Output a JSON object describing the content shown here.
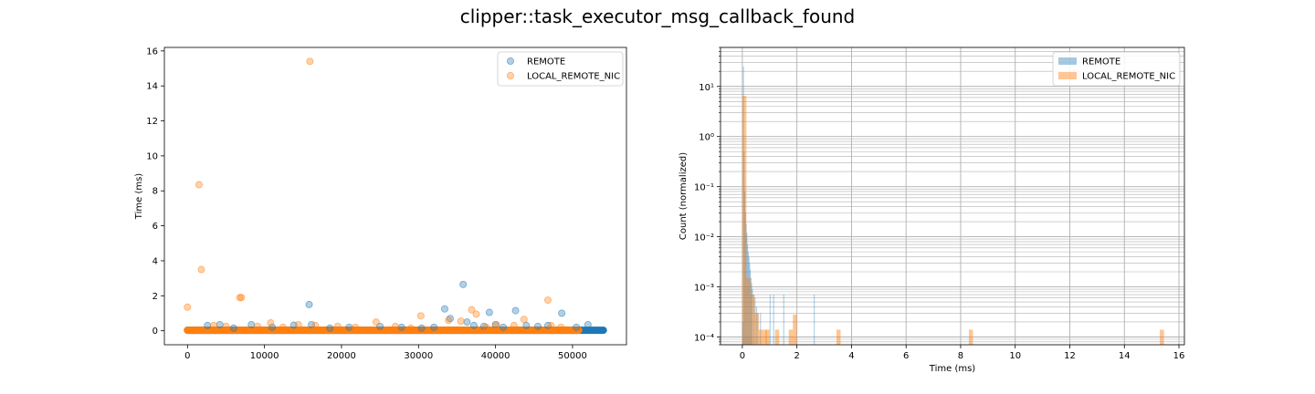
{
  "figure": {
    "title": "clipper::task_executor_msg_callback_found"
  },
  "colors": {
    "remote": "#1f77b4",
    "local_remote_nic": "#ff7f0e",
    "grid": "#b0b0b0",
    "axes": "#000000"
  },
  "chart_data": [
    {
      "type": "scatter",
      "title": "",
      "xlabel": "",
      "ylabel": "Time (ms)",
      "xlim": [
        -3000,
        57000
      ],
      "ylim": [
        -0.8,
        16.2
      ],
      "xticks": [
        0,
        10000,
        20000,
        30000,
        40000,
        50000
      ],
      "yticks": [
        0,
        2,
        4,
        6,
        8,
        10,
        12,
        14,
        16
      ],
      "legend": "top-right",
      "baseline": [
        {
          "name": "REMOTE",
          "x_range": [
            0,
            54000
          ],
          "y": 0.03
        },
        {
          "name": "LOCAL_REMOTE_NIC",
          "x_range": [
            0,
            50800
          ],
          "y": 0.03
        }
      ],
      "series": [
        {
          "name": "REMOTE",
          "color": "#1f77b4",
          "points": [
            [
              35800,
              2.65
            ],
            [
              15800,
              1.5
            ],
            [
              33400,
              1.25
            ],
            [
              39200,
              1.05
            ],
            [
              42600,
              1.15
            ],
            [
              48600,
              1.0
            ],
            [
              34100,
              0.7
            ],
            [
              36300,
              0.5
            ],
            [
              30400,
              0.15
            ],
            [
              13800,
              0.32
            ],
            [
              16100,
              0.35
            ],
            [
              8300,
              0.35
            ],
            [
              2600,
              0.3
            ],
            [
              4200,
              0.35
            ],
            [
              25000,
              0.25
            ],
            [
              27800,
              0.2
            ],
            [
              21000,
              0.2
            ],
            [
              44000,
              0.3
            ],
            [
              45500,
              0.25
            ],
            [
              52000,
              0.35
            ],
            [
              50500,
              0.2
            ],
            [
              38500,
              0.25
            ],
            [
              40000,
              0.35
            ],
            [
              32000,
              0.2
            ],
            [
              18500,
              0.15
            ],
            [
              11000,
              0.2
            ],
            [
              6000,
              0.15
            ],
            [
              46800,
              0.3
            ],
            [
              41000,
              0.2
            ],
            [
              37200,
              0.3
            ]
          ]
        },
        {
          "name": "LOCAL_REMOTE_NIC",
          "color": "#ff7f0e",
          "points": [
            [
              15900,
              15.4
            ],
            [
              1500,
              8.35
            ],
            [
              1800,
              3.5
            ],
            [
              6800,
              1.9
            ],
            [
              7000,
              1.9
            ],
            [
              0,
              1.35
            ],
            [
              46800,
              1.75
            ],
            [
              36900,
              1.2
            ],
            [
              30300,
              0.85
            ],
            [
              37500,
              0.95
            ],
            [
              43700,
              0.65
            ],
            [
              33900,
              0.6
            ],
            [
              35500,
              0.55
            ],
            [
              24500,
              0.5
            ],
            [
              10800,
              0.45
            ],
            [
              14400,
              0.35
            ],
            [
              16600,
              0.3
            ],
            [
              3400,
              0.3
            ],
            [
              9100,
              0.25
            ],
            [
              19500,
              0.25
            ],
            [
              27000,
              0.25
            ],
            [
              40100,
              0.35
            ],
            [
              42400,
              0.3
            ],
            [
              47200,
              0.3
            ],
            [
              48500,
              0.2
            ],
            [
              21800,
              0.2
            ],
            [
              12400,
              0.2
            ],
            [
              5000,
              0.25
            ],
            [
              29000,
              0.15
            ],
            [
              38800,
              0.2
            ]
          ]
        }
      ]
    },
    {
      "type": "bar",
      "subtype": "histogram",
      "title": "",
      "xlabel": "Time (ms)",
      "ylabel": "Count (normalized)",
      "yscale": "log",
      "xlim": [
        -0.8,
        16.2
      ],
      "ylim": [
        7e-05,
        60
      ],
      "xticks": [
        0,
        2,
        4,
        6,
        8,
        10,
        12,
        14,
        16
      ],
      "yticks": [
        0.0001,
        0.001,
        0.01,
        0.1,
        1,
        10
      ],
      "ytick_labels": [
        "10⁻⁴",
        "10⁻³",
        "10⁻²",
        "10⁻¹",
        "10⁰",
        "10¹"
      ],
      "grid": "major and minor",
      "legend": "top-right",
      "series": [
        {
          "name": "REMOTE",
          "color": "#1f77b4",
          "bins": [
            [
              0.0,
              0.025,
              0.0002
            ],
            [
              0.025,
              0.05,
              25
            ],
            [
              0.05,
              0.075,
              0.5
            ],
            [
              0.075,
              0.1,
              0.08
            ],
            [
              0.1,
              0.125,
              0.03
            ],
            [
              0.125,
              0.15,
              0.018
            ],
            [
              0.15,
              0.175,
              0.012
            ],
            [
              0.175,
              0.2,
              0.007
            ],
            [
              0.2,
              0.225,
              0.005
            ],
            [
              0.225,
              0.25,
              0.004
            ],
            [
              0.25,
              0.275,
              0.003
            ],
            [
              0.275,
              0.3,
              0.0022
            ],
            [
              0.3,
              0.325,
              0.0015
            ],
            [
              0.325,
              0.35,
              0.0012
            ],
            [
              0.35,
              0.375,
              0.0009
            ],
            [
              0.4,
              0.425,
              0.0007
            ],
            [
              0.45,
              0.475,
              0.0006
            ],
            [
              0.5,
              0.525,
              0.0004
            ],
            [
              0.55,
              0.575,
              0.0003
            ],
            [
              0.65,
              0.675,
              0.0003
            ],
            [
              1.0,
              1.025,
              0.0007
            ],
            [
              1.13,
              1.155,
              0.0007
            ],
            [
              1.5,
              1.525,
              0.0007
            ],
            [
              2.62,
              2.645,
              0.0007
            ]
          ]
        },
        {
          "name": "LOCAL_REMOTE_NIC",
          "color": "#ff7f0e",
          "bins": [
            [
              0.0,
              0.15,
              6.5
            ],
            [
              0.15,
              0.3,
              0.0015
            ],
            [
              0.3,
              0.45,
              0.0007
            ],
            [
              0.45,
              0.6,
              0.0003
            ],
            [
              0.6,
              0.75,
              0.00014
            ],
            [
              0.75,
              0.9,
              0.00014
            ],
            [
              0.85,
              1.0,
              0.00014
            ],
            [
              1.2,
              1.35,
              0.00014
            ],
            [
              1.7,
              1.85,
              0.00014
            ],
            [
              1.85,
              2.0,
              0.00028
            ],
            [
              3.45,
              3.6,
              0.00014
            ],
            [
              8.3,
              8.45,
              0.00014
            ],
            [
              15.3,
              15.45,
              0.00014
            ]
          ]
        }
      ]
    }
  ]
}
